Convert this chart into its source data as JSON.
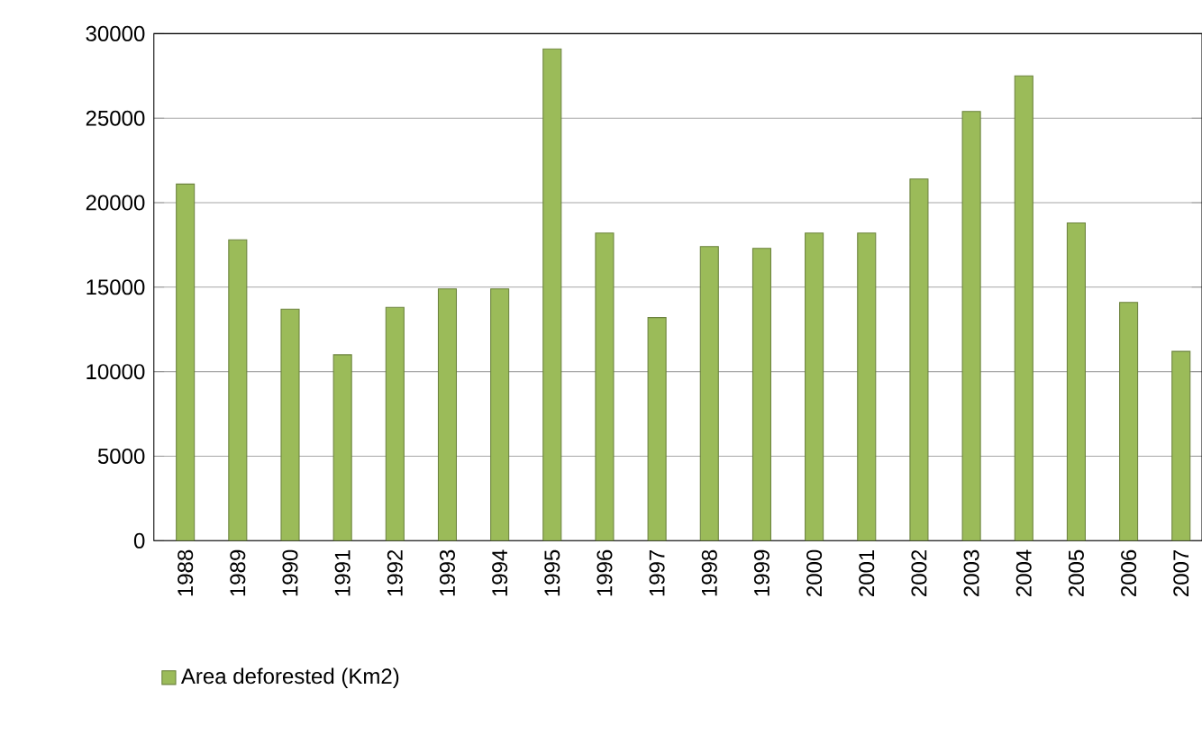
{
  "chart_data": {
    "type": "bar",
    "categories": [
      "1988",
      "1989",
      "1990",
      "1991",
      "1992",
      "1993",
      "1994",
      "1995",
      "1996",
      "1997",
      "1998",
      "1999",
      "2000",
      "2001",
      "2002",
      "2003",
      "2004",
      "2005",
      "2006",
      "2007"
    ],
    "series": [
      {
        "name": "Area deforested (Km2)",
        "color": "#9bbb59",
        "values": [
          21100,
          17800,
          13700,
          11000,
          13800,
          14900,
          14900,
          29100,
          18200,
          13200,
          17400,
          17300,
          18200,
          18200,
          21400,
          25400,
          27500,
          18800,
          14100,
          11200
        ]
      }
    ],
    "ylim": [
      0,
      30000
    ],
    "yticks": [
      0,
      5000,
      10000,
      15000,
      20000,
      25000,
      30000
    ],
    "grid": "y",
    "legend": "bottom left"
  }
}
